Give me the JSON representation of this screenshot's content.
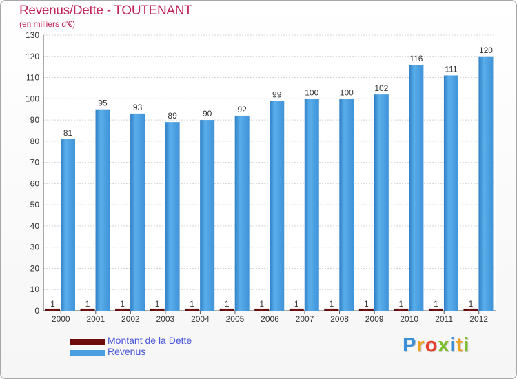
{
  "header": {
    "title": "Revenus/Dette - TOUTENANT",
    "subtitle": "(en milliers d'€)"
  },
  "colors": {
    "title": "#c0245a",
    "legend_text": "#4a56d8",
    "dette": "#6e0c0c",
    "revenus": "#4a9fe3"
  },
  "chart_data": {
    "type": "bar",
    "title": "Revenus/Dette - TOUTENANT",
    "subtitle": "(en milliers d'€)",
    "xlabel": "",
    "ylabel": "",
    "ylim": [
      0,
      130
    ],
    "yticks": [
      "0",
      "10",
      "20",
      "30",
      "40",
      "50",
      "60",
      "70",
      "80",
      "90",
      "100",
      "110",
      "120",
      "130"
    ],
    "grid": true,
    "categories": [
      "2000",
      "2001",
      "2002",
      "2003",
      "2004",
      "2005",
      "2006",
      "2007",
      "2008",
      "2009",
      "2010",
      "2011",
      "2012"
    ],
    "series": [
      {
        "name": "Montant de la Dette",
        "color": "#6e0c0c",
        "values": [
          1,
          1,
          1,
          1,
          1,
          1,
          1,
          1,
          1,
          1,
          1,
          1,
          1
        ]
      },
      {
        "name": "Revenus",
        "color": "#4a9fe3",
        "values": [
          81,
          95,
          93,
          89,
          90,
          92,
          99,
          100,
          100,
          102,
          116,
          111,
          120
        ]
      }
    ],
    "legend_position": "bottom-left"
  },
  "logo": {
    "letters": [
      {
        "ch": "P",
        "color": "#3b8fd8"
      },
      {
        "ch": "r",
        "color": "#f0a11a"
      },
      {
        "ch": "o",
        "color": "#e8402c"
      },
      {
        "ch": "x",
        "color": "#7bbf2b"
      },
      {
        "ch": "i",
        "color": "#3b8fd8"
      },
      {
        "ch": "t",
        "color": "#f0a11a"
      },
      {
        "ch": "i",
        "color": "#7bbf2b"
      }
    ]
  }
}
